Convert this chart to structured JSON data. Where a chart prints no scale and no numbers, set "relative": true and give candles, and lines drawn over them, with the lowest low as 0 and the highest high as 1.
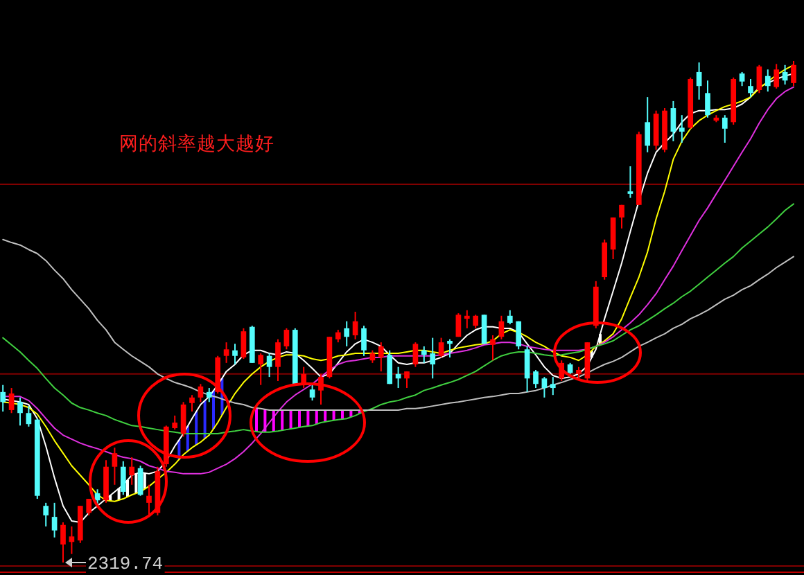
{
  "chart_data": {
    "type": "candlestick",
    "relative": true,
    "categories": [
      null,
      null,
      null,
      null,
      null,
      null,
      null,
      null,
      null,
      null,
      null,
      null,
      null,
      null,
      null,
      null,
      null,
      null,
      null,
      null,
      null,
      null,
      null,
      null,
      null,
      null,
      null,
      null,
      null,
      null,
      null,
      null,
      null,
      null,
      null,
      null,
      null,
      null,
      null,
      null,
      null,
      null,
      null,
      null,
      null,
      null,
      null,
      null,
      null,
      null,
      null,
      null,
      null,
      null,
      null,
      null,
      null,
      null,
      null,
      null,
      null,
      null,
      null,
      null,
      null,
      null,
      null,
      null,
      null,
      null,
      null,
      null,
      null,
      null,
      null,
      null,
      null,
      null,
      null,
      null,
      null,
      null,
      null,
      null,
      null,
      null,
      null,
      null,
      null,
      null,
      null,
      null,
      null
    ],
    "ohlc": [
      [
        0.34,
        0.354,
        0.301,
        0.32
      ],
      [
        0.304,
        0.348,
        0.298,
        0.337
      ],
      [
        0.32,
        0.329,
        0.273,
        0.298
      ],
      [
        0.298,
        0.312,
        0.271,
        0.276
      ],
      [
        0.285,
        0.287,
        0.127,
        0.133
      ],
      [
        0.113,
        0.119,
        0.072,
        0.094
      ],
      [
        0.091,
        0.119,
        0.05,
        0.064
      ],
      [
        0.036,
        0.08,
        0,
        0.075
      ],
      [
        0.041,
        0.072,
        0.017,
        0.052
      ],
      [
        0.044,
        0.113,
        0.039,
        0.113
      ],
      [
        0.099,
        0.127,
        0.094,
        0.127
      ],
      [
        0.138,
        0.146,
        0.11,
        0.124
      ],
      [
        0.124,
        0.204,
        0.119,
        0.191
      ],
      [
        0.191,
        0.229,
        0.155,
        0.218
      ],
      [
        0.191,
        0.202,
        0.135,
        0.141
      ],
      [
        0.174,
        0.21,
        0.155,
        0.191
      ],
      [
        0.188,
        0.193,
        0.133,
        0.135
      ],
      [
        0.119,
        0.155,
        0.091,
        0.133
      ],
      [
        0.099,
        0.191,
        0.094,
        0.182
      ],
      [
        0.196,
        0.273,
        0.191,
        0.271
      ],
      [
        0.268,
        0.293,
        0.265,
        0.279
      ],
      [
        0.257,
        0.32,
        0.251,
        0.315
      ],
      [
        0.318,
        0.334,
        0.301,
        0.329
      ],
      [
        0.329,
        0.356,
        0.32,
        0.351
      ],
      [
        0.34,
        0.348,
        0.32,
        0.329
      ],
      [
        0.34,
        0.412,
        0.337,
        0.409
      ],
      [
        0.412,
        0.439,
        0.398,
        0.425
      ],
      [
        0.423,
        0.436,
        0.395,
        0.412
      ],
      [
        0.409,
        0.467,
        0.406,
        0.461
      ],
      [
        0.47,
        0.472,
        0.398,
        0.398
      ],
      [
        0.395,
        0.417,
        0.354,
        0.414
      ],
      [
        0.412,
        0.417,
        0.37,
        0.39
      ],
      [
        0.39,
        0.445,
        0.362,
        0.439
      ],
      [
        0.431,
        0.467,
        0.425,
        0.464
      ],
      [
        0.464,
        0.467,
        0.354,
        0.356
      ],
      [
        0.354,
        0.39,
        0.348,
        0.376
      ],
      [
        0.345,
        0.354,
        0.323,
        0.329
      ],
      [
        0.343,
        0.376,
        0.315,
        0.37
      ],
      [
        0.37,
        0.45,
        0.367,
        0.45
      ],
      [
        0.445,
        0.464,
        0.439,
        0.459
      ],
      [
        0.467,
        0.481,
        0.431,
        0.45
      ],
      [
        0.453,
        0.5,
        0.445,
        0.481
      ],
      [
        0.467,
        0.472,
        0.412,
        0.423
      ],
      [
        0.403,
        0.423,
        0.398,
        0.417
      ],
      [
        0.409,
        0.439,
        0.381,
        0.431
      ],
      [
        0.414,
        0.423,
        0.356,
        0.356
      ],
      [
        0.376,
        0.39,
        0.348,
        0.367
      ],
      [
        0.367,
        0.381,
        0.348,
        0.381
      ],
      [
        0.395,
        0.439,
        0.39,
        0.436
      ],
      [
        0.423,
        0.431,
        0.398,
        0.414
      ],
      [
        0.417,
        0.448,
        0.367,
        0.395
      ],
      [
        0.412,
        0.448,
        0.409,
        0.439
      ],
      [
        0.442,
        0.445,
        0.409,
        0.436
      ],
      [
        0.45,
        0.497,
        0.45,
        0.494
      ],
      [
        0.486,
        0.503,
        0.467,
        0.492
      ],
      [
        0.472,
        0.494,
        0.467,
        0.492
      ],
      [
        0.494,
        0.494,
        0.436,
        0.436
      ],
      [
        0.434,
        0.453,
        0.403,
        0.445
      ],
      [
        0.45,
        0.492,
        0.445,
        0.481
      ],
      [
        0.492,
        0.503,
        0.475,
        0.478
      ],
      [
        0.481,
        0.481,
        0.425,
        0.431
      ],
      [
        0.425,
        0.431,
        0.34,
        0.367
      ],
      [
        0.381,
        0.384,
        0.348,
        0.356
      ],
      [
        0.367,
        0.37,
        0.329,
        0.348
      ],
      [
        0.356,
        0.37,
        0.334,
        0.348
      ],
      [
        0.367,
        0.403,
        0.362,
        0.398
      ],
      [
        0.395,
        0.398,
        0.376,
        0.378
      ],
      [
        0.376,
        0.39,
        0.367,
        0.384
      ],
      [
        0.367,
        0.439,
        0.362,
        0.439
      ],
      [
        0.472,
        0.561,
        0.467,
        0.55
      ],
      [
        0.569,
        0.644,
        0.564,
        0.638
      ],
      [
        0.624,
        0.688,
        0.605,
        0.688
      ],
      [
        0.688,
        0.713,
        0.666,
        0.713
      ],
      [
        0.74,
        0.79,
        0.727,
        0.735
      ],
      [
        0.713,
        0.859,
        0.713,
        0.854
      ],
      [
        0.878,
        0.928,
        0.818,
        0.831
      ],
      [
        0.831,
        0.901,
        0.823,
        0.895
      ],
      [
        0.823,
        0.906,
        0.818,
        0.901
      ],
      [
        0.906,
        0.92,
        0.84,
        0.859
      ],
      [
        0.867,
        0.892,
        0.837,
        0.859
      ],
      [
        0.867,
        0.967,
        0.865,
        0.964
      ],
      [
        0.978,
        0.997,
        0.923,
        0.95
      ],
      [
        0.936,
        0.961,
        0.887,
        0.892
      ],
      [
        0.881,
        0.892,
        0.878,
        0.887
      ],
      [
        0.887,
        0.892,
        0.837,
        0.865
      ],
      [
        0.878,
        0.967,
        0.873,
        0.964
      ],
      [
        0.975,
        0.978,
        0.95,
        0.959
      ],
      [
        0.95,
        0.964,
        0.928,
        0.936
      ],
      [
        0.942,
        0.992,
        0.936,
        0.989
      ],
      [
        0.97,
        0.983,
        0.939,
        0.95
      ],
      [
        0.948,
        0.994,
        0.945,
        0.983
      ],
      [
        0.978,
        0.992,
        0.953,
        0.961
      ],
      [
        0.956,
        1,
        0.95,
        0.992
      ]
    ],
    "colors": [
      "#54fcfc",
      "#ff0000",
      "#54fcfc",
      "#54fcfc",
      "#54fcfc",
      "#54fcfc",
      "#54fcfc",
      "#ff0000",
      "#ff0000",
      "#ff0000",
      "#ff0000",
      "#54fcfc",
      "#ff0000",
      "#ff0000",
      "#54fcfc",
      "#ff0000",
      "#54fcfc",
      "#ff0000",
      "#ff0000",
      "#ff0000",
      "#ff0000",
      "#ff0000",
      "#ff0000",
      "#ff0000",
      "#54fcfc",
      "#ff0000",
      "#ff0000",
      "#54fcfc",
      "#ff0000",
      "#54fcfc",
      "#ff0000",
      "#54fcfc",
      "#ff0000",
      "#ff0000",
      "#54fcfc",
      "#ff0000",
      "#54fcfc",
      "#ff0000",
      "#ff0000",
      "#ff0000",
      "#54fcfc",
      "#ff0000",
      "#54fcfc",
      "#ff0000",
      "#ff0000",
      "#54fcfc",
      "#54fcfc",
      "#ff0000",
      "#ff0000",
      "#54fcfc",
      "#54fcfc",
      "#ff0000",
      "#54fcfc",
      "#ff0000",
      "#ff0000",
      "#ff0000",
      "#54fcfc",
      "#ff0000",
      "#ff0000",
      "#54fcfc",
      "#54fcfc",
      "#54fcfc",
      "#54fcfc",
      "#54fcfc",
      "#54fcfc",
      "#ff0000",
      "#54fcfc",
      "#ff0000",
      "#ff0000",
      "#ff0000",
      "#ff0000",
      "#ff0000",
      "#ff0000",
      "#54fcfc",
      "#ff0000",
      "#54fcfc",
      "#ff0000",
      "#ff0000",
      "#54fcfc",
      "#54fcfc",
      "#ff0000",
      "#54fcfc",
      "#54fcfc",
      "#ff0000",
      "#54fcfc",
      "#ff0000",
      "#54fcfc",
      "#54fcfc",
      "#ff0000",
      "#54fcfc",
      "#ff0000",
      "#54fcfc",
      "#ff0000"
    ],
    "series": [
      {
        "type": "line",
        "color": "#ffffff",
        "values": [
          0.326,
          0.323,
          0.32,
          0.315,
          0.287,
          0.232,
          0.169,
          0.113,
          0.083,
          0.08,
          0.099,
          0.113,
          0.127,
          0.141,
          0.155,
          0.174,
          0.18,
          0.177,
          0.182,
          0.202,
          0.232,
          0.257,
          0.287,
          0.315,
          0.331,
          0.354,
          0.381,
          0.395,
          0.414,
          0.423,
          0.423,
          0.417,
          0.414,
          0.42,
          0.417,
          0.403,
          0.387,
          0.37,
          0.376,
          0.398,
          0.42,
          0.436,
          0.445,
          0.439,
          0.431,
          0.414,
          0.398,
          0.395,
          0.398,
          0.398,
          0.403,
          0.409,
          0.417,
          0.436,
          0.453,
          0.464,
          0.47,
          0.47,
          0.467,
          0.467,
          0.459,
          0.436,
          0.414,
          0.39,
          0.373,
          0.367,
          0.37,
          0.376,
          0.392,
          0.425,
          0.486,
          0.541,
          0.597,
          0.66,
          0.721,
          0.776,
          0.818,
          0.837,
          0.854,
          0.878,
          0.895,
          0.901,
          0.901,
          0.903,
          0.903,
          0.906,
          0.914,
          0.928,
          0.948,
          0.956,
          0.964,
          0.97,
          0.975
        ]
      },
      {
        "type": "line",
        "color": "#ffff00",
        "values": [
          0.32,
          0.318,
          0.315,
          0.309,
          0.296,
          0.271,
          0.243,
          0.218,
          0.193,
          0.174,
          0.155,
          0.135,
          0.124,
          0.122,
          0.127,
          0.135,
          0.141,
          0.152,
          0.166,
          0.18,
          0.196,
          0.215,
          0.229,
          0.24,
          0.254,
          0.279,
          0.309,
          0.337,
          0.359,
          0.376,
          0.39,
          0.401,
          0.409,
          0.414,
          0.414,
          0.412,
          0.406,
          0.403,
          0.406,
          0.412,
          0.414,
          0.417,
          0.417,
          0.417,
          0.417,
          0.417,
          0.417,
          0.42,
          0.423,
          0.423,
          0.42,
          0.417,
          0.423,
          0.428,
          0.431,
          0.434,
          0.436,
          0.442,
          0.456,
          0.464,
          0.459,
          0.45,
          0.439,
          0.431,
          0.42,
          0.412,
          0.409,
          0.403,
          0.414,
          0.431,
          0.442,
          0.456,
          0.486,
          0.528,
          0.569,
          0.619,
          0.685,
          0.74,
          0.804,
          0.84,
          0.865,
          0.881,
          0.892,
          0.901,
          0.909,
          0.914,
          0.92,
          0.928,
          0.945,
          0.959,
          0.972,
          0.983,
          0.992
        ]
      },
      {
        "type": "line",
        "color": "#e030e0",
        "values": [
          0.331,
          0.331,
          0.331,
          0.323,
          0.307,
          0.287,
          0.268,
          0.254,
          0.246,
          0.238,
          0.232,
          0.227,
          0.221,
          0.215,
          0.21,
          0.207,
          0.202,
          0.193,
          0.188,
          0.182,
          0.18,
          0.177,
          0.177,
          0.177,
          0.18,
          0.188,
          0.196,
          0.207,
          0.221,
          0.238,
          0.257,
          0.279,
          0.301,
          0.32,
          0.334,
          0.345,
          0.356,
          0.37,
          0.384,
          0.395,
          0.401,
          0.403,
          0.406,
          0.409,
          0.409,
          0.412,
          0.412,
          0.412,
          0.412,
          0.412,
          0.412,
          0.414,
          0.417,
          0.42,
          0.423,
          0.428,
          0.434,
          0.436,
          0.439,
          0.439,
          0.436,
          0.431,
          0.428,
          0.425,
          0.423,
          0.423,
          0.423,
          0.423,
          0.425,
          0.431,
          0.439,
          0.45,
          0.464,
          0.478,
          0.494,
          0.514,
          0.536,
          0.564,
          0.591,
          0.622,
          0.652,
          0.682,
          0.707,
          0.735,
          0.762,
          0.79,
          0.818,
          0.845,
          0.876,
          0.903,
          0.925,
          0.939,
          0.948
        ]
      },
      {
        "type": "line",
        "color": "#40d040",
        "values": [
          0.448,
          0.434,
          0.42,
          0.403,
          0.387,
          0.367,
          0.348,
          0.334,
          0.318,
          0.309,
          0.304,
          0.298,
          0.293,
          0.285,
          0.279,
          0.273,
          0.271,
          0.268,
          0.265,
          0.262,
          0.26,
          0.257,
          0.257,
          0.257,
          0.257,
          0.257,
          0.26,
          0.262,
          0.265,
          0.262,
          0.26,
          0.26,
          0.262,
          0.265,
          0.268,
          0.271,
          0.273,
          0.279,
          0.282,
          0.285,
          0.287,
          0.293,
          0.301,
          0.307,
          0.315,
          0.32,
          0.323,
          0.329,
          0.334,
          0.343,
          0.348,
          0.354,
          0.359,
          0.365,
          0.373,
          0.381,
          0.392,
          0.403,
          0.412,
          0.417,
          0.42,
          0.42,
          0.417,
          0.414,
          0.412,
          0.414,
          0.417,
          0.42,
          0.425,
          0.431,
          0.436,
          0.442,
          0.453,
          0.464,
          0.472,
          0.483,
          0.494,
          0.506,
          0.517,
          0.53,
          0.541,
          0.555,
          0.569,
          0.583,
          0.597,
          0.61,
          0.627,
          0.641,
          0.655,
          0.669,
          0.685,
          0.702,
          0.715
        ]
      },
      {
        "type": "line",
        "color": "#c0c0c0",
        "values": [
          0.644,
          0.638,
          0.633,
          0.624,
          0.616,
          0.602,
          0.583,
          0.566,
          0.544,
          0.525,
          0.506,
          0.483,
          0.464,
          0.439,
          0.425,
          0.412,
          0.401,
          0.39,
          0.376,
          0.367,
          0.359,
          0.354,
          0.348,
          0.34,
          0.334,
          0.329,
          0.323,
          0.318,
          0.315,
          0.309,
          0.307,
          0.304,
          0.304,
          0.304,
          0.304,
          0.304,
          0.304,
          0.304,
          0.304,
          0.304,
          0.304,
          0.304,
          0.304,
          0.304,
          0.304,
          0.304,
          0.304,
          0.307,
          0.307,
          0.309,
          0.312,
          0.315,
          0.318,
          0.32,
          0.323,
          0.326,
          0.329,
          0.331,
          0.334,
          0.337,
          0.337,
          0.34,
          0.343,
          0.348,
          0.354,
          0.359,
          0.365,
          0.37,
          0.378,
          0.387,
          0.395,
          0.401,
          0.409,
          0.42,
          0.431,
          0.439,
          0.448,
          0.456,
          0.467,
          0.475,
          0.486,
          0.494,
          0.503,
          0.514,
          0.525,
          0.533,
          0.544,
          0.552,
          0.564,
          0.575,
          0.588,
          0.599,
          0.61
        ]
      }
    ],
    "ref_lines": [
      {
        "axis": "y",
        "value": 0.754,
        "color": "#800000"
      },
      {
        "axis": "y",
        "value": 0.376,
        "color": "#800000"
      }
    ],
    "annotations": [
      "网的斜率越大越好",
      "2319.74"
    ]
  }
}
